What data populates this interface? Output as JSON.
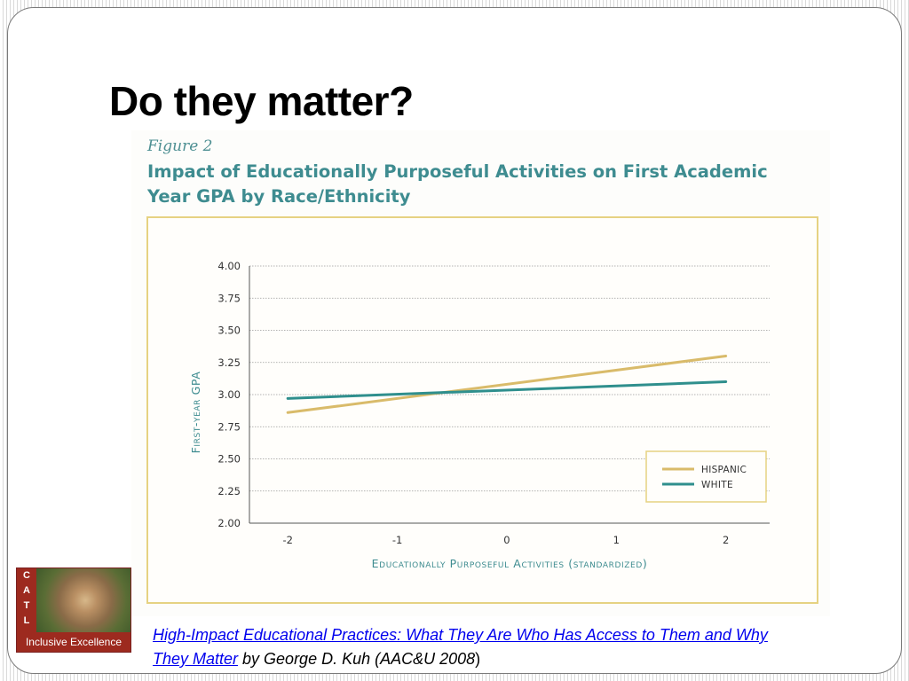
{
  "slide": {
    "title": "Do they matter?"
  },
  "figure": {
    "label": "Figure 2",
    "title": "Impact of Educationally Purposeful Activities on First Academic Year GPA by Race/Ethnicity"
  },
  "chart_data": {
    "type": "line",
    "xlabel": "Educationally Purposeful Activities (standardized)",
    "ylabel": "First-year GPA",
    "x": [
      -2,
      2
    ],
    "x_ticks": [
      "-2",
      "-1",
      "0",
      "1",
      "2"
    ],
    "x_tick_values": [
      -2,
      -1,
      0,
      1,
      2
    ],
    "y_ticks": [
      "4.00",
      "3.75",
      "3.50",
      "3.25",
      "3.00",
      "2.75",
      "2.50",
      "2.25",
      "2.00"
    ],
    "y_tick_values": [
      4.0,
      3.75,
      3.5,
      3.25,
      3.0,
      2.75,
      2.5,
      2.25,
      2.0
    ],
    "ylim": [
      2.0,
      4.0
    ],
    "xlim": [
      -2.35,
      2.4
    ],
    "grid": true,
    "legend_position": "bottom-right",
    "series": [
      {
        "name": "Hispanic",
        "legend_label": "HISPANIC",
        "color": "#d9bb6a",
        "values": [
          2.86,
          3.3
        ]
      },
      {
        "name": "White",
        "legend_label": "WHITE",
        "color": "#2f8f8d",
        "values": [
          2.97,
          3.1
        ]
      }
    ]
  },
  "logo": {
    "letters": [
      "C",
      "A",
      "T",
      "L"
    ],
    "caption": "Inclusive Excellence"
  },
  "citation": {
    "link_text": "High-Impact Educational Practices: What They Are Who Has Access to Them and Why They Matter",
    "rest_text": " by George D. Kuh (AAC&U 2008",
    "close_paren": ")"
  }
}
